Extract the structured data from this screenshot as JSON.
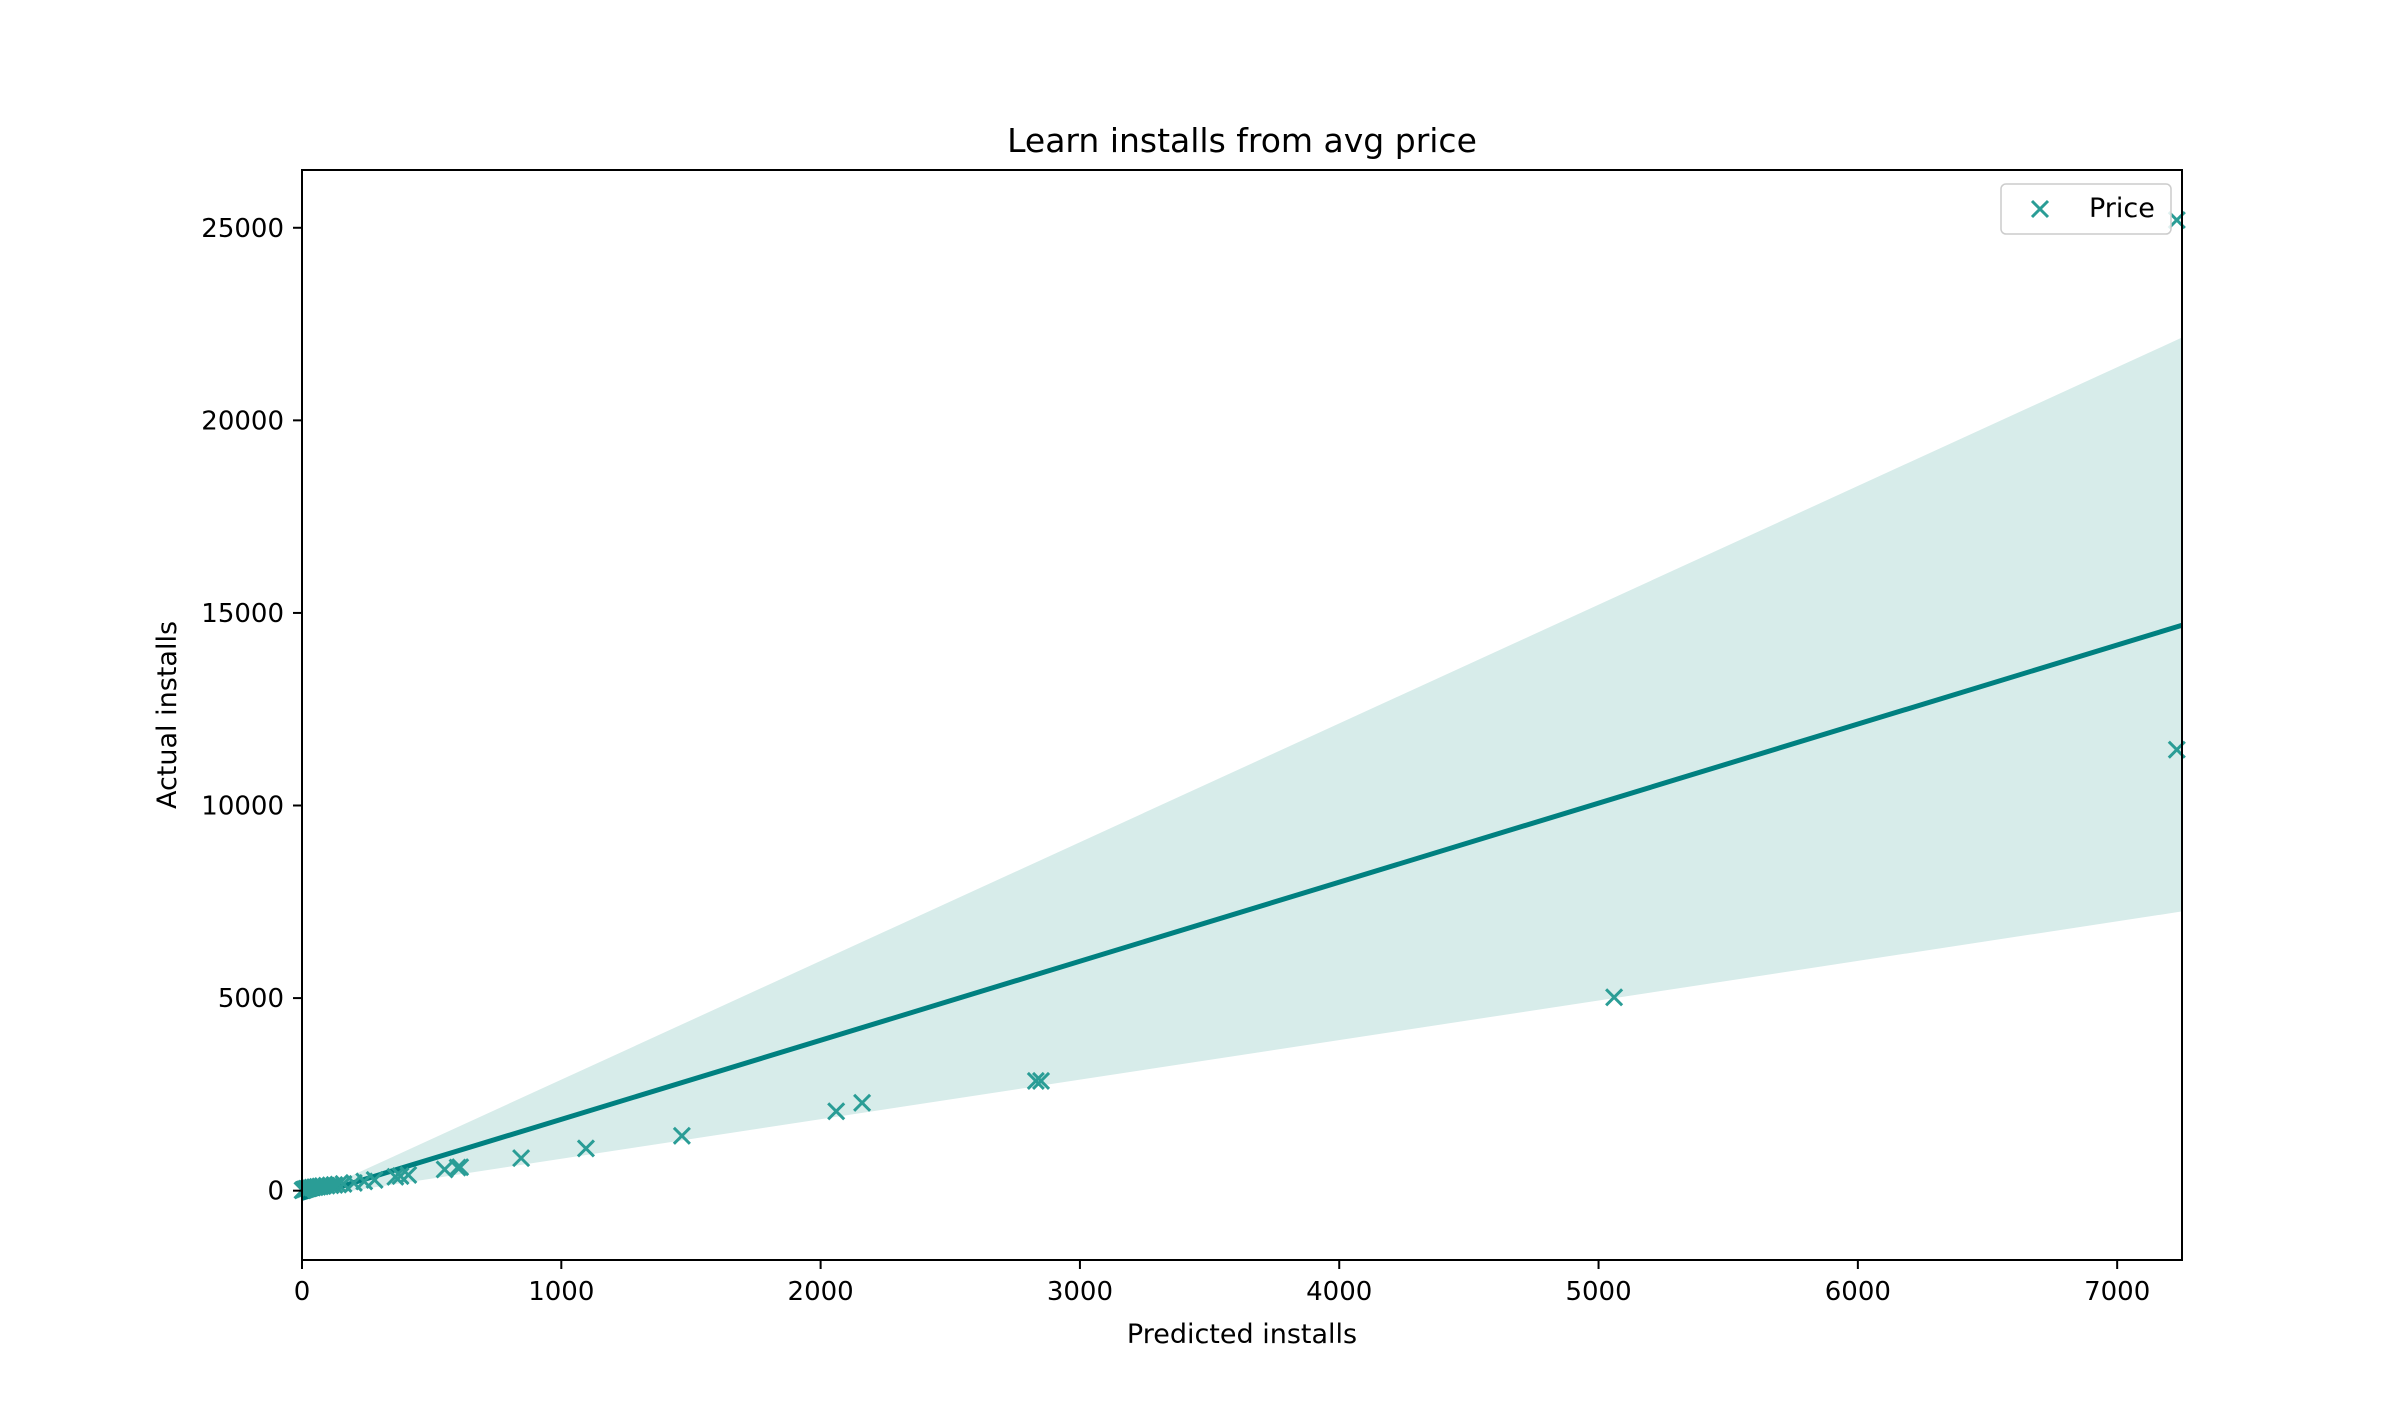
{
  "chart_data": {
    "type": "scatter",
    "title": "Learn installs from avg price",
    "xlabel": "Predicted installs",
    "ylabel": "Actual installs",
    "xlim": [
      0,
      7250
    ],
    "ylim": [
      -1800,
      26500
    ],
    "xticks": [
      0,
      1000,
      2000,
      3000,
      4000,
      5000,
      6000,
      7000
    ],
    "yticks": [
      0,
      5000,
      10000,
      15000,
      20000,
      25000
    ],
    "grid": false,
    "legend": {
      "placement": "top-right",
      "entries": [
        "Price"
      ]
    },
    "colors": {
      "points": "#2a9d96",
      "line": "#008080",
      "band": "#d7ecea"
    },
    "series": [
      {
        "name": "Price",
        "marker": "x",
        "x": [
          2,
          5,
          8,
          12,
          18,
          25,
          30,
          40,
          50,
          60,
          70,
          80,
          95,
          110,
          125,
          140,
          160,
          200,
          240,
          280,
          360,
          380,
          410,
          550,
          600,
          610,
          845,
          1095,
          1465,
          2060,
          2160,
          2830,
          2850,
          5060,
          7230,
          7230
        ],
        "y": [
          10,
          20,
          30,
          40,
          50,
          60,
          70,
          80,
          90,
          100,
          110,
          120,
          130,
          140,
          150,
          160,
          175,
          200,
          240,
          280,
          360,
          380,
          410,
          550,
          600,
          610,
          845,
          1095,
          1425,
          2060,
          2280,
          2850,
          2850,
          5020,
          11450,
          25200
        ]
      }
    ],
    "regression": {
      "x": [
        0,
        7250
      ],
      "y": [
        -200,
        14680
      ],
      "ci_lower": [
        -200,
        7250
      ],
      "ci_upper": [
        -200,
        22150
      ]
    }
  }
}
